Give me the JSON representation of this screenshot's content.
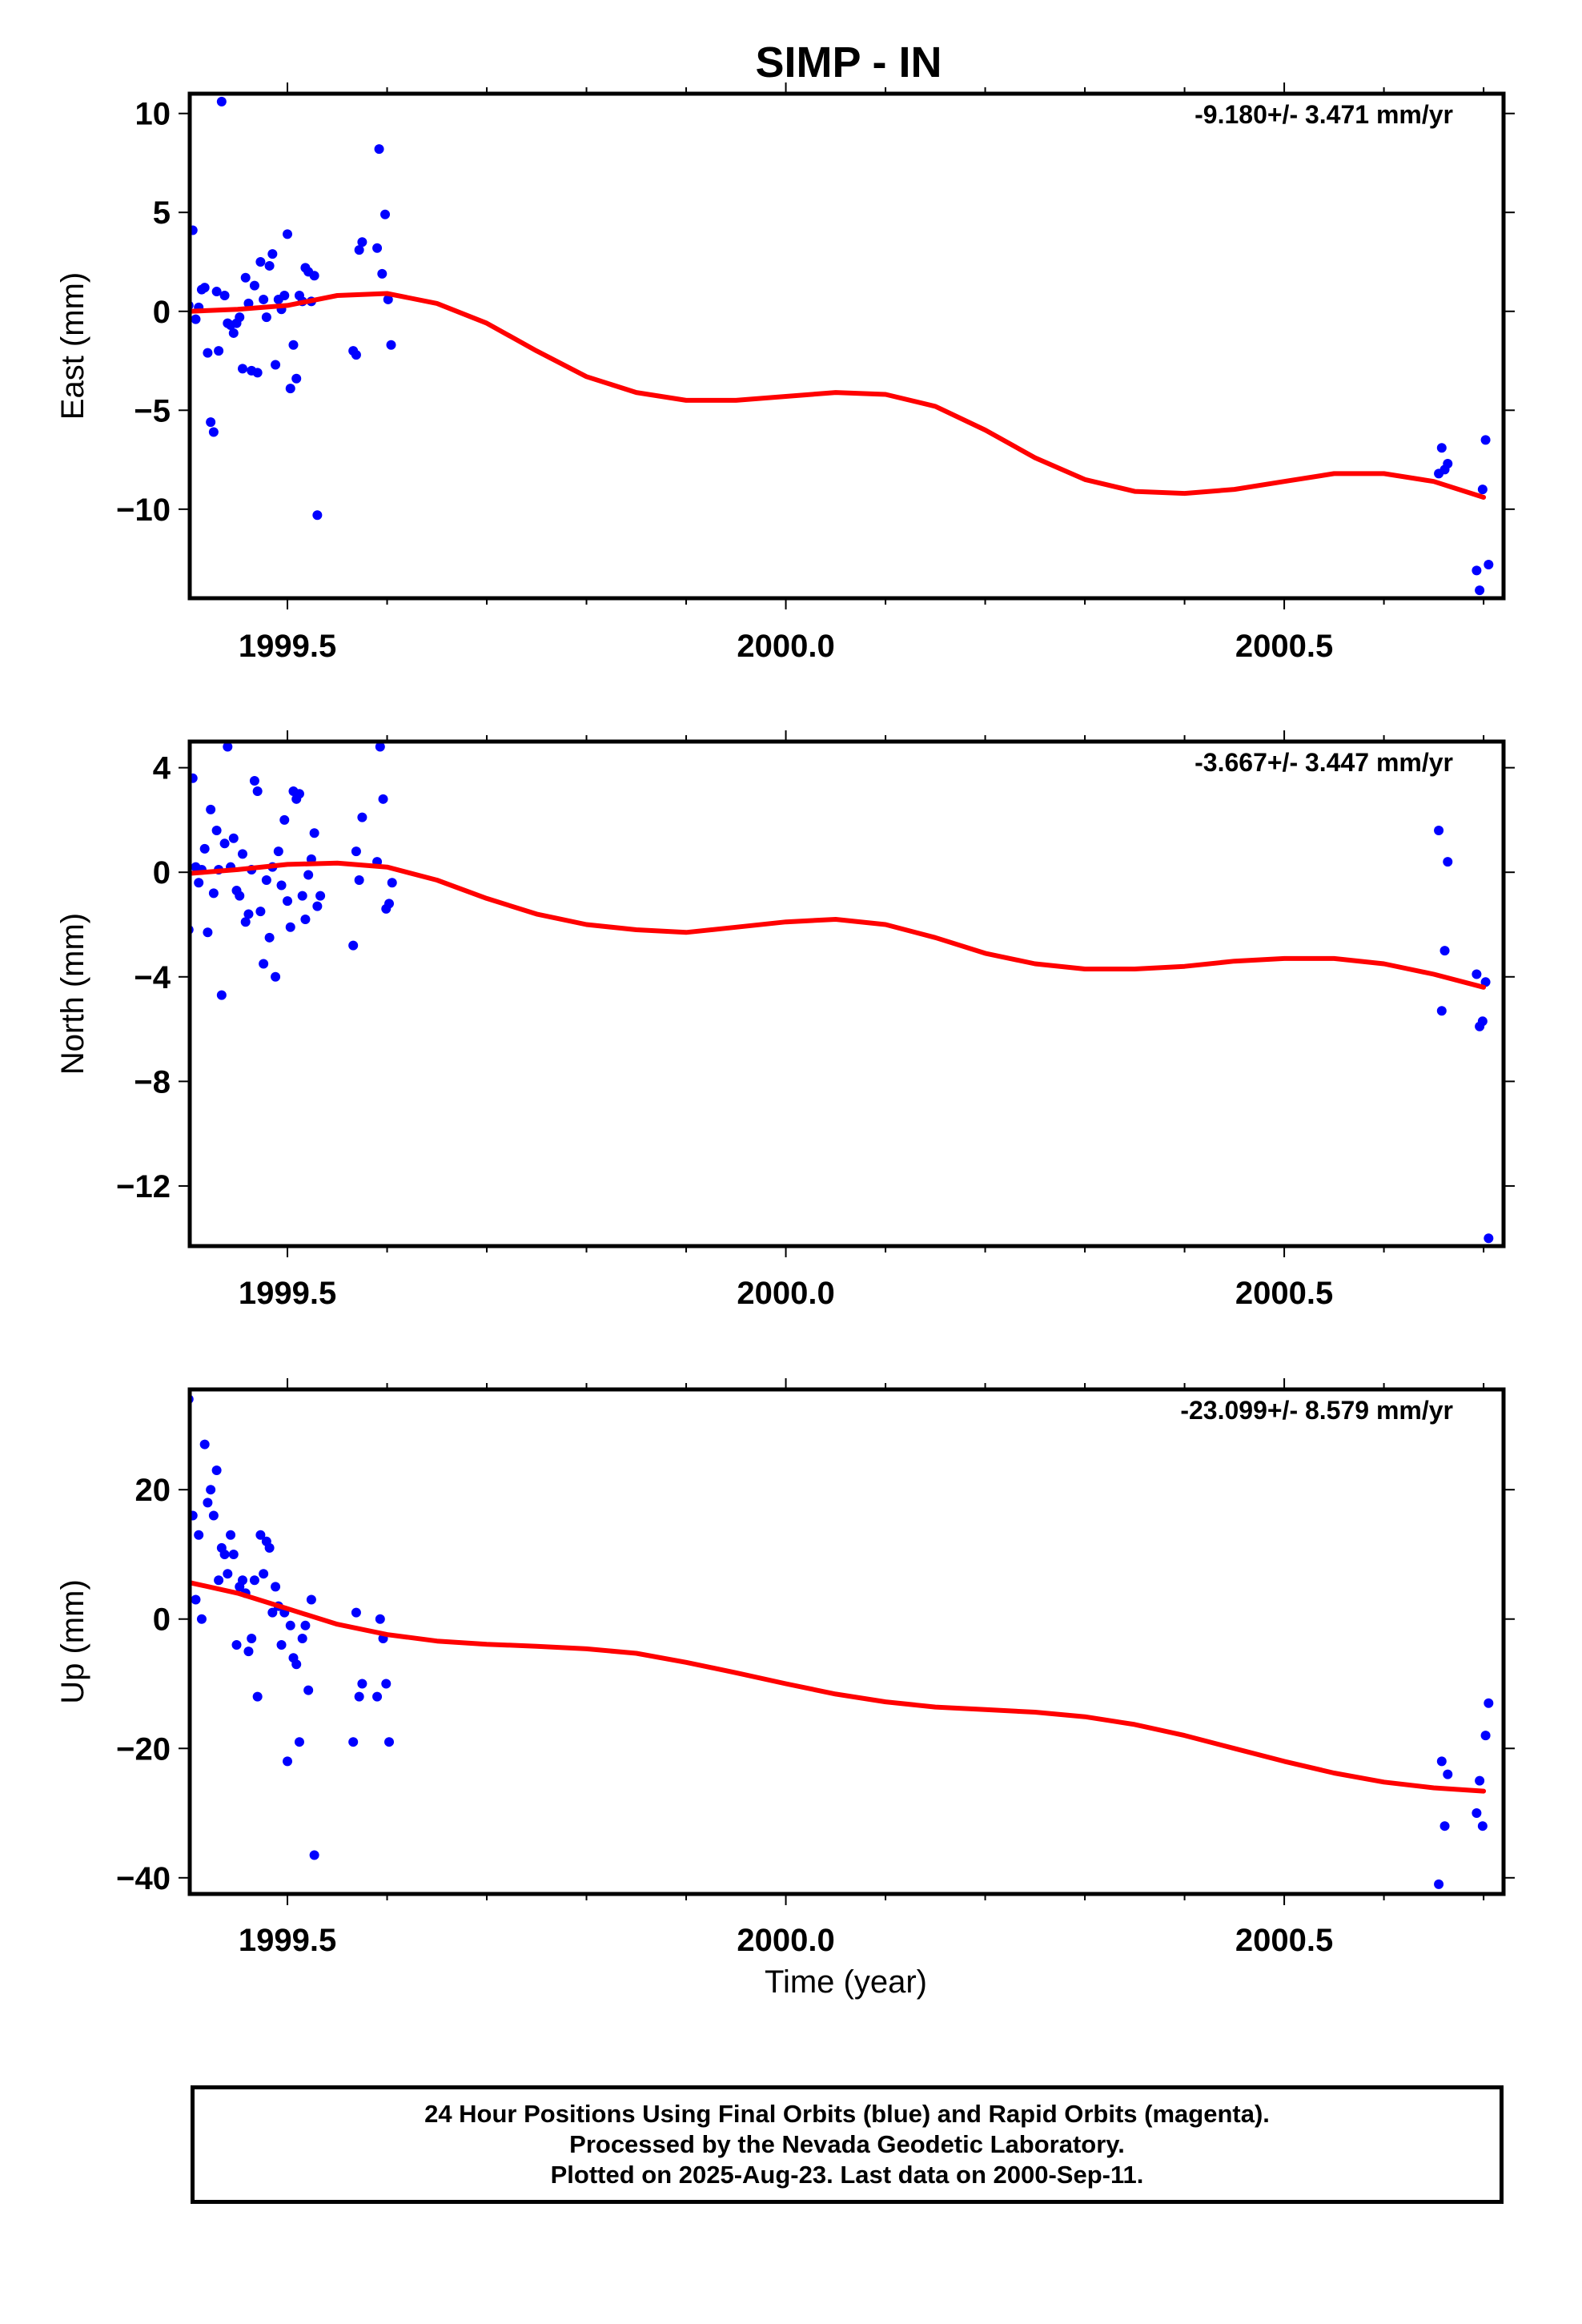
{
  "title": "SIMP - IN",
  "footer": {
    "line1": "24 Hour Positions Using Final Orbits (blue) and Rapid Orbits (magenta).",
    "line2": "Processed by the Nevada Geodetic Laboratory.",
    "line3": "Plotted on 2025-Aug-23. Last data on 2000-Sep-11."
  },
  "colors": {
    "points": "#0000ff",
    "fit": "#ff0000",
    "marker": "#00e5ff",
    "frame": "#000000"
  },
  "chart_data": [
    {
      "type": "scatter",
      "title": "",
      "ylabel": "East (mm)",
      "xlabel": "",
      "rate_label": "-9.180+/- 3.471 mm/yr",
      "xlim": [
        1999.402,
        2000.72
      ],
      "ylim": [
        -14.5,
        11
      ],
      "xticks": [
        1999.5,
        2000.0,
        2000.5
      ],
      "xtick_labels": [
        "1999.5",
        "2000.0",
        "2000.5"
      ],
      "yticks": [
        10,
        5,
        0,
        -5,
        -10
      ],
      "ytick_labels": [
        "10",
        "5",
        "0",
        "−5",
        "−10"
      ],
      "marker_line_x": 1999.4,
      "grid": false,
      "points": [
        [
          1999.401,
          0.3
        ],
        [
          1999.405,
          4.1
        ],
        [
          1999.408,
          -0.4
        ],
        [
          1999.411,
          0.2
        ],
        [
          1999.414,
          1.1
        ],
        [
          1999.417,
          1.2
        ],
        [
          1999.42,
          -2.1
        ],
        [
          1999.423,
          -5.6
        ],
        [
          1999.426,
          -6.1
        ],
        [
          1999.429,
          1.0
        ],
        [
          1999.431,
          -2.0
        ],
        [
          1999.434,
          10.6
        ],
        [
          1999.437,
          0.8
        ],
        [
          1999.44,
          -0.6
        ],
        [
          1999.443,
          -0.7
        ],
        [
          1999.446,
          -1.1
        ],
        [
          1999.449,
          -0.6
        ],
        [
          1999.452,
          -0.3
        ],
        [
          1999.455,
          -2.9
        ],
        [
          1999.458,
          1.7
        ],
        [
          1999.461,
          0.4
        ],
        [
          1999.464,
          -3.0
        ],
        [
          1999.467,
          1.3
        ],
        [
          1999.47,
          -3.1
        ],
        [
          1999.473,
          2.5
        ],
        [
          1999.476,
          0.6
        ],
        [
          1999.479,
          -0.3
        ],
        [
          1999.482,
          2.3
        ],
        [
          1999.485,
          2.9
        ],
        [
          1999.488,
          -2.7
        ],
        [
          1999.491,
          0.6
        ],
        [
          1999.494,
          0.1
        ],
        [
          1999.497,
          0.8
        ],
        [
          1999.5,
          3.9
        ],
        [
          1999.503,
          -3.9
        ],
        [
          1999.506,
          -1.7
        ],
        [
          1999.509,
          -3.4
        ],
        [
          1999.512,
          0.8
        ],
        [
          1999.515,
          0.5
        ],
        [
          1999.518,
          2.2
        ],
        [
          1999.521,
          2.0
        ],
        [
          1999.524,
          0.5
        ],
        [
          1999.527,
          1.8
        ],
        [
          1999.53,
          -10.3
        ],
        [
          1999.566,
          -2.0
        ],
        [
          1999.569,
          -2.2
        ],
        [
          1999.572,
          3.1
        ],
        [
          1999.575,
          3.5
        ],
        [
          1999.59,
          3.2
        ],
        [
          1999.592,
          8.2
        ],
        [
          1999.595,
          1.9
        ],
        [
          1999.598,
          4.9
        ],
        [
          1999.601,
          0.6
        ],
        [
          1999.604,
          -1.7
        ],
        [
          2000.655,
          -8.2
        ],
        [
          2000.658,
          -6.9
        ],
        [
          2000.661,
          -8.0
        ],
        [
          2000.664,
          -7.7
        ],
        [
          2000.693,
          -13.1
        ],
        [
          2000.696,
          -14.1
        ],
        [
          2000.699,
          -9.0
        ],
        [
          2000.702,
          -6.5
        ],
        [
          2000.705,
          -12.8
        ]
      ],
      "fit": {
        "x": [
          1999.4,
          1999.45,
          1999.5,
          1999.55,
          1999.6,
          1999.65,
          1999.7,
          1999.75,
          1999.8,
          1999.85,
          1999.9,
          1999.95,
          2000.0,
          2000.05,
          2000.1,
          2000.15,
          2000.2,
          2000.25,
          2000.3,
          2000.35,
          2000.4,
          2000.45,
          2000.5,
          2000.55,
          2000.6,
          2000.65,
          2000.7
        ],
        "y": [
          0.0,
          0.1,
          0.3,
          0.8,
          0.9,
          0.4,
          -0.6,
          -2.0,
          -3.3,
          -4.1,
          -4.5,
          -4.5,
          -4.3,
          -4.1,
          -4.2,
          -4.8,
          -6.0,
          -7.4,
          -8.5,
          -9.1,
          -9.2,
          -9.0,
          -8.6,
          -8.2,
          -8.2,
          -8.6,
          -9.4
        ]
      }
    },
    {
      "type": "scatter",
      "title": "",
      "ylabel": "North (mm)",
      "xlabel": "",
      "rate_label": "-3.667+/- 3.447 mm/yr",
      "xlim": [
        1999.402,
        2000.72
      ],
      "ylim": [
        -14.3,
        5.0
      ],
      "xticks": [
        1999.5,
        2000.0,
        2000.5
      ],
      "xtick_labels": [
        "1999.5",
        "2000.0",
        "2000.5"
      ],
      "yticks": [
        4,
        0,
        -4,
        -8,
        -12
      ],
      "ytick_labels": [
        "4",
        "0",
        "−4",
        "−8",
        "−12"
      ],
      "marker_line_x": 1999.4,
      "grid": false,
      "points": [
        [
          1999.401,
          -2.2
        ],
        [
          1999.405,
          3.6
        ],
        [
          1999.408,
          0.2
        ],
        [
          1999.411,
          -0.4
        ],
        [
          1999.414,
          0.1
        ],
        [
          1999.417,
          0.9
        ],
        [
          1999.42,
          -2.3
        ],
        [
          1999.423,
          2.4
        ],
        [
          1999.426,
          -0.8
        ],
        [
          1999.429,
          1.6
        ],
        [
          1999.431,
          0.1
        ],
        [
          1999.434,
          -4.7
        ],
        [
          1999.437,
          1.1
        ],
        [
          1999.44,
          4.8
        ],
        [
          1999.443,
          0.2
        ],
        [
          1999.446,
          1.3
        ],
        [
          1999.449,
          -0.7
        ],
        [
          1999.452,
          -0.9
        ],
        [
          1999.455,
          0.7
        ],
        [
          1999.458,
          -1.9
        ],
        [
          1999.461,
          -1.6
        ],
        [
          1999.464,
          0.1
        ],
        [
          1999.467,
          3.5
        ],
        [
          1999.47,
          3.1
        ],
        [
          1999.473,
          -1.5
        ],
        [
          1999.476,
          -3.5
        ],
        [
          1999.479,
          -0.3
        ],
        [
          1999.482,
          -2.5
        ],
        [
          1999.485,
          0.2
        ],
        [
          1999.488,
          -4.0
        ],
        [
          1999.491,
          0.8
        ],
        [
          1999.494,
          -0.5
        ],
        [
          1999.497,
          2.0
        ],
        [
          1999.5,
          -1.1
        ],
        [
          1999.503,
          -2.1
        ],
        [
          1999.506,
          3.1
        ],
        [
          1999.509,
          2.8
        ],
        [
          1999.512,
          3.0
        ],
        [
          1999.515,
          -0.9
        ],
        [
          1999.518,
          -1.8
        ],
        [
          1999.521,
          -0.1
        ],
        [
          1999.524,
          0.5
        ],
        [
          1999.527,
          1.5
        ],
        [
          1999.53,
          -1.3
        ],
        [
          1999.533,
          -0.9
        ],
        [
          1999.566,
          -2.8
        ],
        [
          1999.569,
          0.8
        ],
        [
          1999.572,
          -0.3
        ],
        [
          1999.575,
          2.1
        ],
        [
          1999.59,
          0.4
        ],
        [
          1999.593,
          4.8
        ],
        [
          1999.596,
          2.8
        ],
        [
          1999.599,
          -1.4
        ],
        [
          1999.602,
          -1.2
        ],
        [
          1999.605,
          -0.4
        ],
        [
          2000.655,
          1.6
        ],
        [
          2000.658,
          -5.3
        ],
        [
          2000.661,
          -3.0
        ],
        [
          2000.664,
          0.4
        ],
        [
          2000.693,
          -3.9
        ],
        [
          2000.696,
          -5.9
        ],
        [
          2000.699,
          -5.7
        ],
        [
          2000.702,
          -4.2
        ],
        [
          2000.705,
          -14.0
        ]
      ],
      "fit": {
        "x": [
          1999.4,
          1999.45,
          1999.5,
          1999.55,
          1999.6,
          1999.65,
          1999.7,
          1999.75,
          1999.8,
          1999.85,
          1999.9,
          1999.95,
          2000.0,
          2000.05,
          2000.1,
          2000.15,
          2000.2,
          2000.25,
          2000.3,
          2000.35,
          2000.4,
          2000.45,
          2000.5,
          2000.55,
          2000.6,
          2000.65,
          2000.7
        ],
        "y": [
          -0.05,
          0.1,
          0.3,
          0.35,
          0.2,
          -0.3,
          -1.0,
          -1.6,
          -2.0,
          -2.2,
          -2.3,
          -2.1,
          -1.9,
          -1.8,
          -2.0,
          -2.5,
          -3.1,
          -3.5,
          -3.7,
          -3.7,
          -3.6,
          -3.4,
          -3.3,
          -3.3,
          -3.5,
          -3.9,
          -4.4
        ]
      }
    },
    {
      "type": "scatter",
      "title": "",
      "ylabel": "Up (mm)",
      "xlabel": "Time (year)",
      "rate_label": "-23.099+/- 8.579 mm/yr",
      "xlim": [
        1999.402,
        2000.72
      ],
      "ylim": [
        -42.5,
        35.5
      ],
      "xticks": [
        1999.5,
        2000.0,
        2000.5
      ],
      "xtick_labels": [
        "1999.5",
        "2000.0",
        "2000.5"
      ],
      "yticks": [
        20,
        0,
        -20,
        -40
      ],
      "ytick_labels": [
        "20",
        "0",
        "−20",
        "−40"
      ],
      "marker_line_x": 1999.4,
      "grid": false,
      "points": [
        [
          1999.401,
          34.0
        ],
        [
          1999.405,
          16.0
        ],
        [
          1999.408,
          3.0
        ],
        [
          1999.411,
          13.0
        ],
        [
          1999.414,
          0.0
        ],
        [
          1999.417,
          27.0
        ],
        [
          1999.42,
          18.0
        ],
        [
          1999.423,
          20.0
        ],
        [
          1999.426,
          16.0
        ],
        [
          1999.429,
          23.0
        ],
        [
          1999.431,
          6.0
        ],
        [
          1999.434,
          11.0
        ],
        [
          1999.437,
          10.0
        ],
        [
          1999.44,
          7.0
        ],
        [
          1999.443,
          13.0
        ],
        [
          1999.446,
          10.0
        ],
        [
          1999.449,
          -4.0
        ],
        [
          1999.452,
          5.0
        ],
        [
          1999.455,
          6.0
        ],
        [
          1999.458,
          4.0
        ],
        [
          1999.461,
          -5.0
        ],
        [
          1999.464,
          -3.0
        ],
        [
          1999.467,
          6.0
        ],
        [
          1999.47,
          -12.0
        ],
        [
          1999.473,
          13.0
        ],
        [
          1999.476,
          7.0
        ],
        [
          1999.479,
          12.0
        ],
        [
          1999.482,
          11.0
        ],
        [
          1999.485,
          1.0
        ],
        [
          1999.488,
          5.0
        ],
        [
          1999.491,
          2.0
        ],
        [
          1999.494,
          -4.0
        ],
        [
          1999.497,
          1.0
        ],
        [
          1999.5,
          -22.0
        ],
        [
          1999.503,
          -1.0
        ],
        [
          1999.506,
          -6.0
        ],
        [
          1999.509,
          -7.0
        ],
        [
          1999.512,
          -19.0
        ],
        [
          1999.515,
          -3.0
        ],
        [
          1999.518,
          -1.0
        ],
        [
          1999.521,
          -11.0
        ],
        [
          1999.524,
          3.0
        ],
        [
          1999.527,
          -36.5
        ],
        [
          1999.566,
          -19.0
        ],
        [
          1999.569,
          1.0
        ],
        [
          1999.572,
          -12.0
        ],
        [
          1999.575,
          -10.0
        ],
        [
          1999.59,
          -12.0
        ],
        [
          1999.593,
          0.0
        ],
        [
          1999.596,
          -3.0
        ],
        [
          1999.599,
          -10.0
        ],
        [
          1999.602,
          -19.0
        ],
        [
          2000.655,
          -41.0
        ],
        [
          2000.658,
          -22.0
        ],
        [
          2000.661,
          -32.0
        ],
        [
          2000.664,
          -24.0
        ],
        [
          2000.693,
          -30.0
        ],
        [
          2000.696,
          -25.0
        ],
        [
          2000.699,
          -32.0
        ],
        [
          2000.702,
          -18.0
        ],
        [
          2000.705,
          -13.0
        ]
      ],
      "fit": {
        "x": [
          1999.4,
          1999.45,
          1999.5,
          1999.55,
          1999.6,
          1999.65,
          1999.7,
          1999.75,
          1999.8,
          1999.85,
          1999.9,
          1999.95,
          2000.0,
          2000.05,
          2000.1,
          2000.15,
          2000.2,
          2000.25,
          2000.3,
          2000.35,
          2000.4,
          2000.45,
          2000.5,
          2000.55,
          2000.6,
          2000.65,
          2000.7
        ],
        "y": [
          5.7,
          4.0,
          1.6,
          -0.8,
          -2.4,
          -3.4,
          -3.9,
          -4.2,
          -4.6,
          -5.3,
          -6.7,
          -8.3,
          -10.0,
          -11.6,
          -12.8,
          -13.6,
          -14.0,
          -14.4,
          -15.1,
          -16.3,
          -18.0,
          -20.0,
          -22.0,
          -23.8,
          -25.2,
          -26.1,
          -26.6
        ]
      }
    }
  ]
}
